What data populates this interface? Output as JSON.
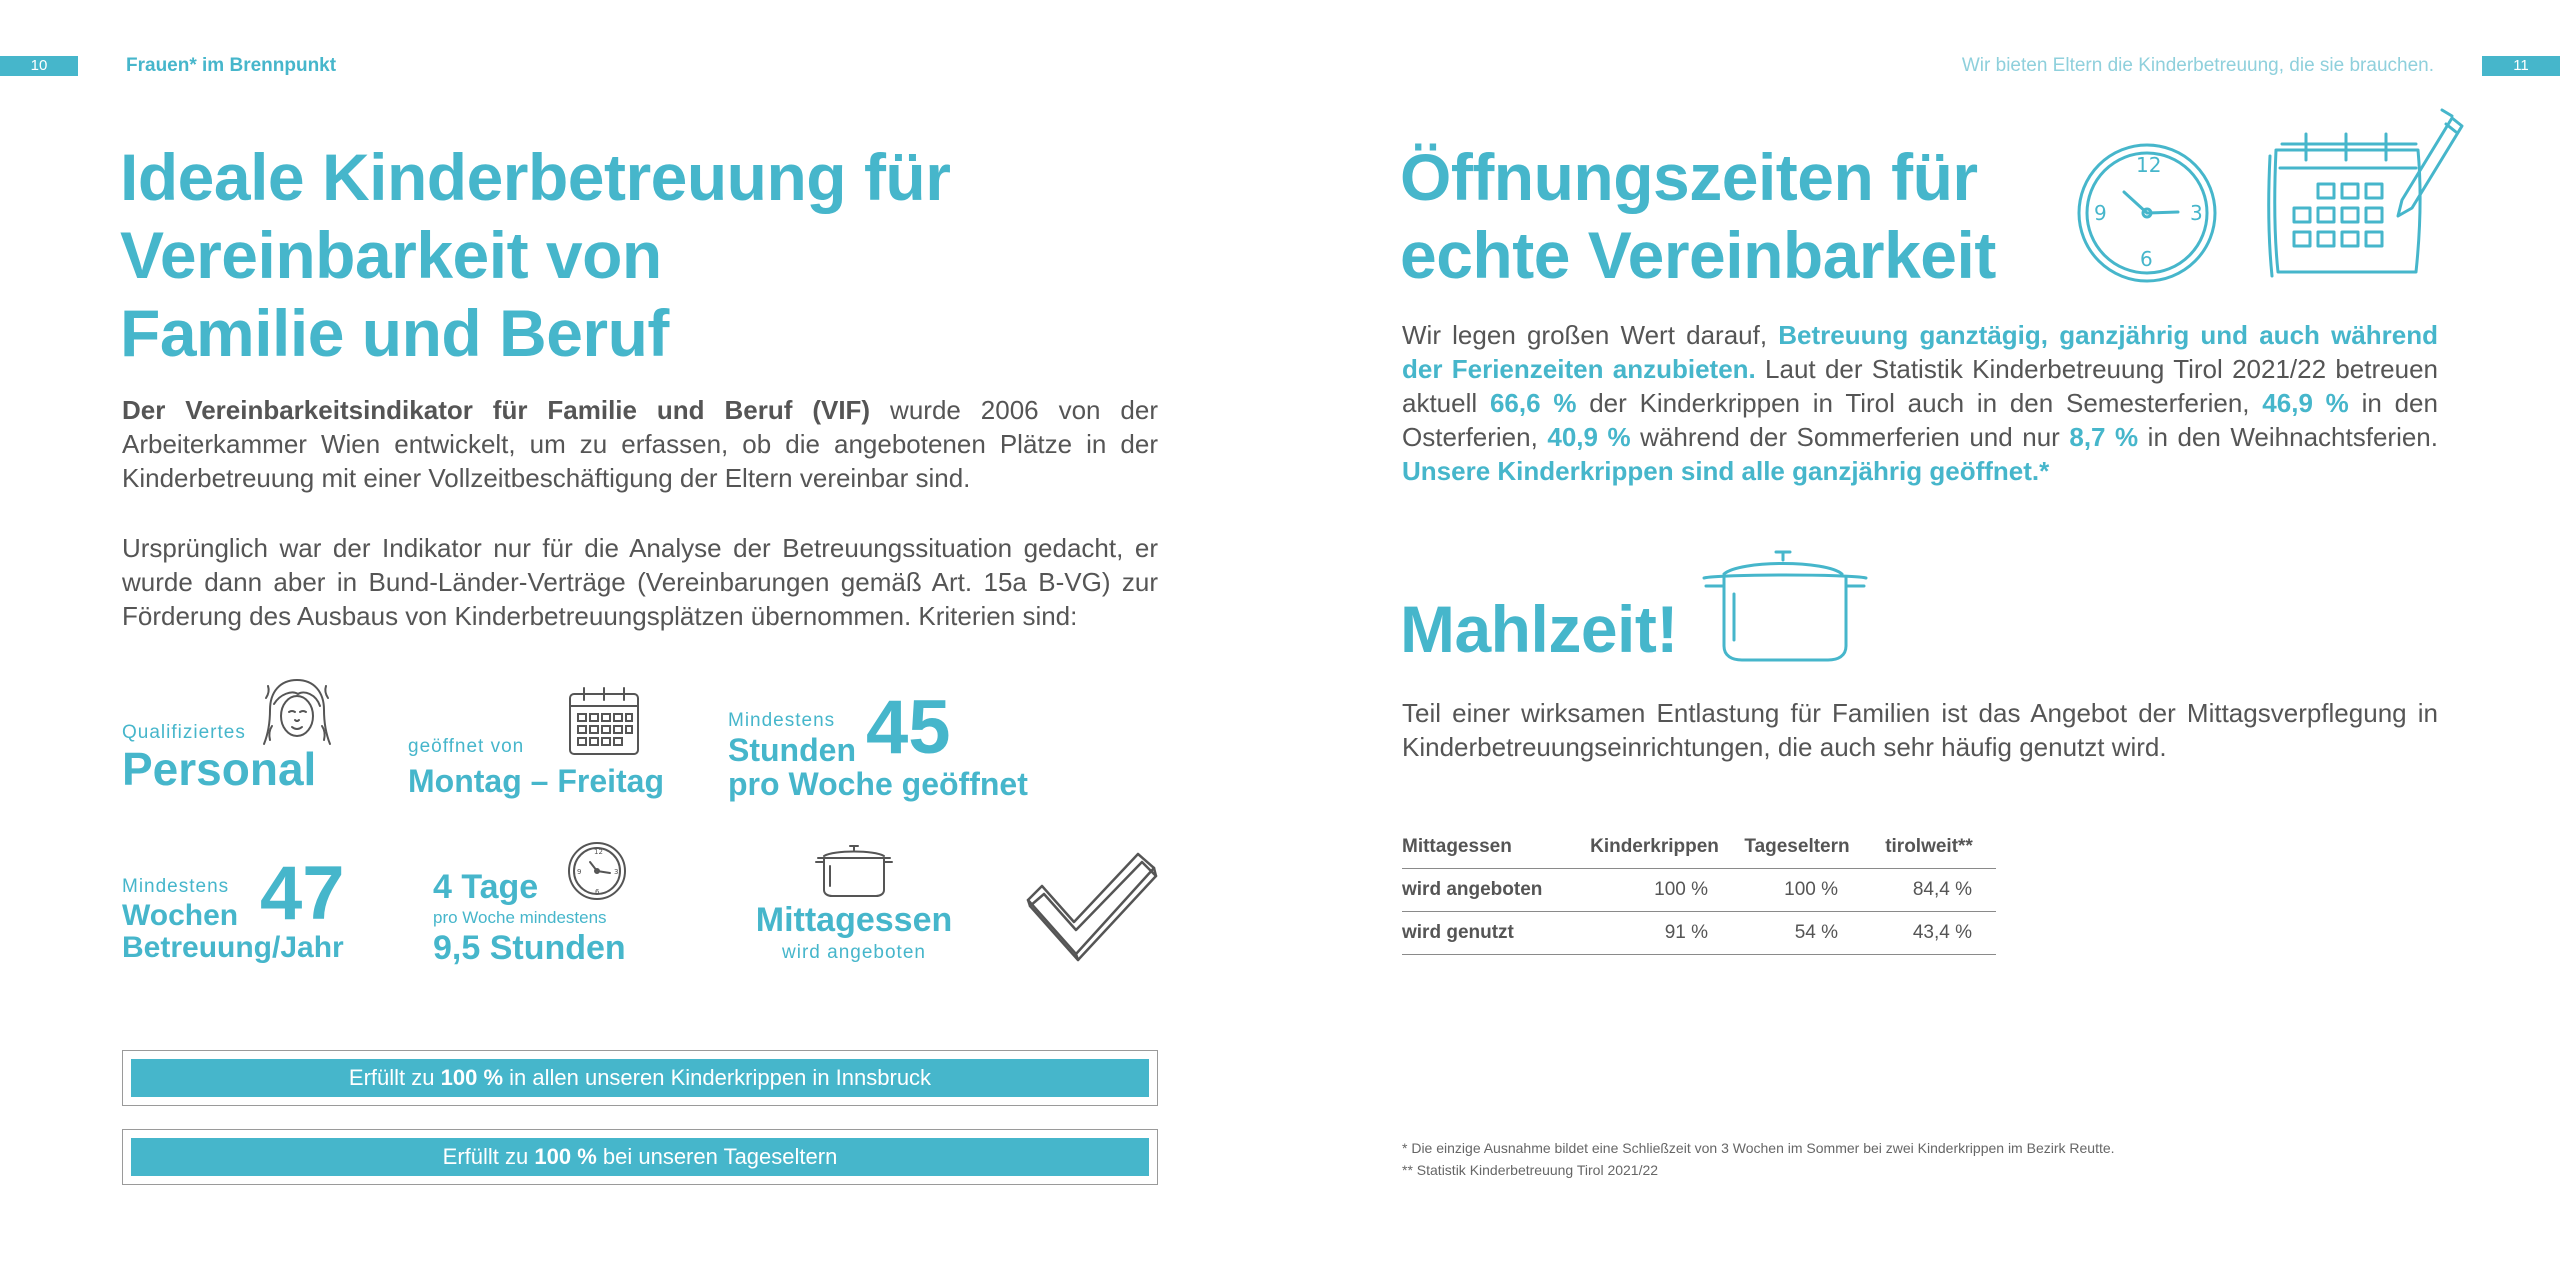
{
  "header": {
    "left_page_number": "10",
    "left_running_title": "Frauen* im Brennpunkt",
    "right_running_title": "Wir bieten Eltern die Kinderbetreuung, die sie brauchen.",
    "right_page_number": "11"
  },
  "left": {
    "title_lines": [
      "Ideale Kinderbetreuung für",
      "Vereinbarkeit von",
      "Familie und Beruf"
    ],
    "para1": {
      "bold": "Der Vereinbarkeitsindikator für Familie und Beruf (VIF)",
      "rest": " wurde 2006 von der Arbeiterkammer Wien entwickelt, um zu erfassen, ob die angebotenen Plätze in der Kinderbetreuung mit einer Vollzeitbeschäftigung der Eltern vereinbar sind."
    },
    "para2": "Ursprünglich war der Indikator nur für die Analyse der Betreuungssituation gedacht, er wurde dann aber in Bund-Länder-Verträge (Vereinbarungen gemäß Art. 15a B-VG) zur Förderung des Ausbaus von Kinderbetreuungsplätzen übernommen. Kriterien sind:",
    "criteria": {
      "personal_small": "Qualifiziertes",
      "personal_big": "Personal",
      "open_small": "geöffnet von",
      "open_big": "Montag – Freitag",
      "hours_small": "Mindestens",
      "hours_number": "45",
      "hours_big1": "Stunden",
      "hours_big2": "pro Woche geöffnet",
      "weeks_small": "Mindestens",
      "weeks_number": "47",
      "weeks_big1": "Wochen",
      "weeks_big2": "Betreuung/Jahr",
      "days_big": "4 Tage",
      "days_small": "pro Woche mindestens",
      "days_big2": "9,5 Stunden",
      "meal_big": "Mittagessen",
      "meal_small": "wird angeboten"
    },
    "bar1": {
      "prefix": "Erfüllt zu ",
      "bold": "100 %",
      "suffix": " in allen unseren Kinderkrippen in Innsbruck"
    },
    "bar2": {
      "prefix": "Erfüllt zu ",
      "bold": "100 %",
      "suffix": " bei unseren Tageseltern"
    }
  },
  "right": {
    "title_lines": [
      "Öffnungszeiten für",
      "echte Vereinbarkeit"
    ],
    "para": {
      "t1": "Wir legen großen Wert darauf, ",
      "b1": "Betreuung ganztägig, ganzjährig und auch während der Ferienzeiten anzubieten.",
      "t2": " Laut der Statistik Kinderbetreuung Tirol 2021/22 betreuen aktuell ",
      "b2": "66,6 %",
      "t3": " der Kinderkrippen in Tirol auch in den Semesterferien, ",
      "b3": "46,9 %",
      "t4": " in den Osterferien, ",
      "b4": "40,9 %",
      "t5": " während der Sommerferien und nur ",
      "b5": "8,7 %",
      "t6": " in den Weihnachtsferien. ",
      "b6": "Unsere Kinderkrippen sind alle ganzjährig geöffnet.*"
    },
    "meal_title": "Mahlzeit!",
    "meal_para": "Teil einer wirksamen Entlastung für Familien ist das Angebot der Mittagsverpflegung in Kinderbetreuungseinrichtungen, die auch sehr häufig genutzt wird.",
    "table": {
      "headers": [
        "Mittagessen",
        "Kinderkrippen",
        "Tageseltern",
        "tirolweit**"
      ],
      "rows": [
        [
          "wird angeboten",
          "100 %",
          "100 %",
          "84,4 %"
        ],
        [
          "wird genutzt",
          "91 %",
          "54 %",
          "43,4 %"
        ]
      ]
    },
    "footnote1": "* Die einzige Ausnahme bildet eine Schließzeit von 3 Wochen im Sommer bei zwei Kinderkrippen im Bezirk Reutte.",
    "footnote2": "** Statistik Kinderbetreuung Tirol 2021/22"
  },
  "colors": {
    "accent": "#46b6cb",
    "text": "#555555",
    "rule": "#8a8a8a"
  },
  "icons": [
    "woman-face-icon",
    "calendar-icon",
    "clock-icon",
    "calendar-pen-icon",
    "cooking-pot-icon",
    "checkmark-icon"
  ]
}
